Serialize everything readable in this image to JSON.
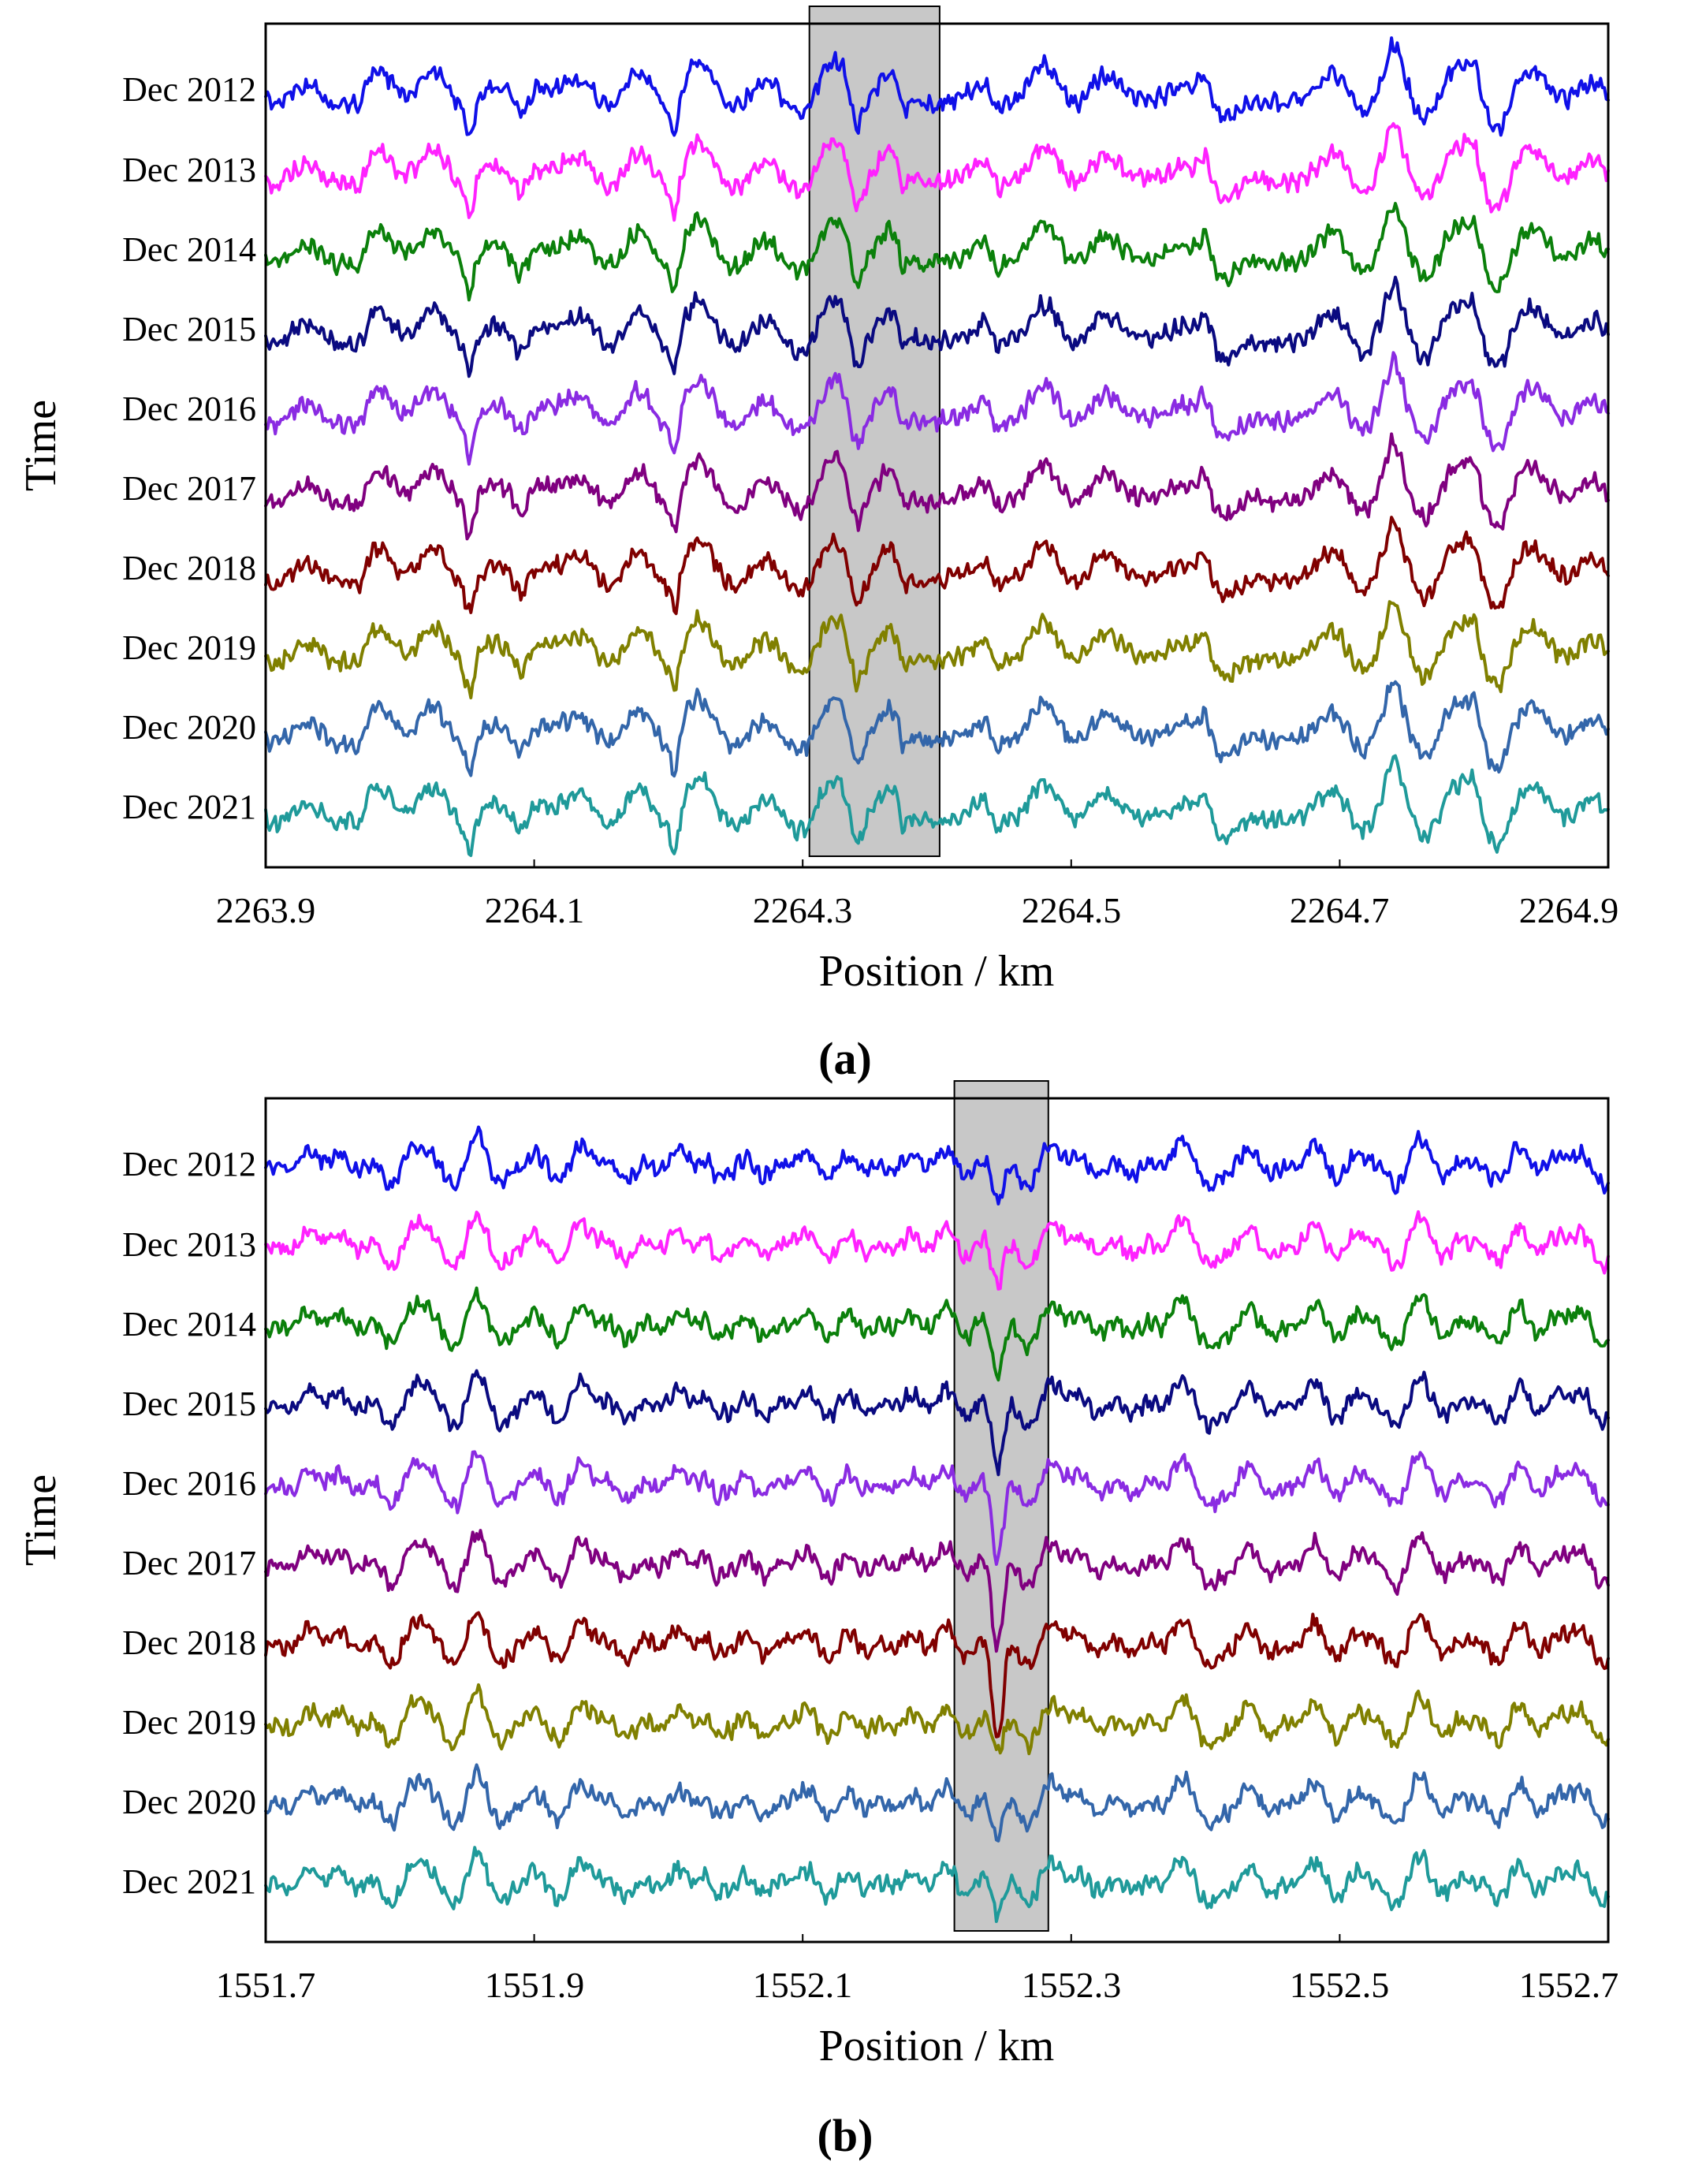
{
  "chart_data": [
    {
      "id": "a",
      "type": "line",
      "panel_label": "(a)",
      "xlabel": "Position / km",
      "ylabel": "Time",
      "xlim": [
        2263.9,
        2264.9
      ],
      "x_ticks": [
        "2263.9",
        "2264.1",
        "2264.3",
        "2264.5",
        "2264.7",
        "2264.9"
      ],
      "highlight_range": [
        2264.305,
        2264.402
      ],
      "y_categories": [
        "Dec 2012",
        "Dec 2013",
        "Dec 2014",
        "Dec 2015",
        "Dec 2016",
        "Dec 2017",
        "Dec 2018",
        "Dec 2019",
        "Dec 2020",
        "Dec 2021"
      ],
      "series": [
        {
          "name": "Dec 2012",
          "color": "#1010e8"
        },
        {
          "name": "Dec 2013",
          "color": "#ff22ff"
        },
        {
          "name": "Dec 2014",
          "color": "#0b800b"
        },
        {
          "name": "Dec 2015",
          "color": "#0a0a80"
        },
        {
          "name": "Dec 2016",
          "color": "#8a2be2"
        },
        {
          "name": "Dec 2017",
          "color": "#800080"
        },
        {
          "name": "Dec 2018",
          "color": "#800000"
        },
        {
          "name": "Dec 2019",
          "color": "#808000"
        },
        {
          "name": "Dec 2020",
          "color": "#3366aa"
        },
        {
          "name": "Dec 2021",
          "color": "#1f9a9a"
        }
      ],
      "features": [
        {
          "x": 2263.97,
          "depth": 0.45,
          "width": 0.006
        },
        {
          "x": 2264.052,
          "depth": 0.8,
          "width": 0.004
        },
        {
          "x": 2264.09,
          "depth": 0.5,
          "width": 0.006
        },
        {
          "x": 2264.205,
          "depth": 0.85,
          "width": 0.004
        },
        {
          "x": 2264.34,
          "depth": 0.9,
          "width": 0.006
        },
        {
          "x": 2264.375,
          "depth": 0.75,
          "width": 0.005
        },
        {
          "x": 2264.445,
          "depth": 0.5,
          "width": 0.006
        },
        {
          "x": 2264.63,
          "depth": 0.7,
          "width": 0.03
        },
        {
          "x": 2264.82,
          "depth": 0.9,
          "width": 0.012
        },
        {
          "x": 2264.6,
          "depth": -0.7,
          "width": 0.006
        },
        {
          "x": 2264.8,
          "depth": -0.85,
          "width": 0.008
        },
        {
          "x": 2264.74,
          "depth": -0.5,
          "width": 0.006
        }
      ]
    },
    {
      "id": "b",
      "type": "line",
      "panel_label": "(b)",
      "xlabel": "Position / km",
      "ylabel": "Time",
      "xlim": [
        1551.7,
        1552.7
      ],
      "x_ticks": [
        "1551.7",
        "1551.9",
        "1552.1",
        "1552.3",
        "1552.5",
        "1552.7"
      ],
      "highlight_range": [
        1552.213,
        1552.283
      ],
      "y_categories": [
        "Dec 2012",
        "Dec 2013",
        "Dec 2014",
        "Dec 2015",
        "Dec 2016",
        "Dec 2017",
        "Dec 2018",
        "Dec 2019",
        "Dec 2020",
        "Dec 2021"
      ],
      "series": [
        {
          "name": "Dec 2012",
          "color": "#1010e8"
        },
        {
          "name": "Dec 2013",
          "color": "#ff22ff"
        },
        {
          "name": "Dec 2014",
          "color": "#0b800b"
        },
        {
          "name": "Dec 2015",
          "color": "#0a0a80"
        },
        {
          "name": "Dec 2016",
          "color": "#8a2be2"
        },
        {
          "name": "Dec 2017",
          "color": "#800080"
        },
        {
          "name": "Dec 2018",
          "color": "#800000"
        },
        {
          "name": "Dec 2019",
          "color": "#808000"
        },
        {
          "name": "Dec 2020",
          "color": "#3366aa"
        },
        {
          "name": "Dec 2021",
          "color": "#1f9a9a"
        }
      ],
      "features": [
        {
          "x": 1552.035,
          "depth": 0.55,
          "width": 0.004
        },
        {
          "x": 1552.245,
          "depth": 0.75,
          "width": 0.006
        },
        {
          "x": 1552.405,
          "depth": 0.35,
          "width": 0.008
        },
        {
          "x": 1552.11,
          "depth": 0.25,
          "width": 0.01
        },
        {
          "x": 1551.905,
          "depth": 0.25,
          "width": 0.006
        },
        {
          "x": 1552.58,
          "depth": 0.25,
          "width": 0.006
        }
      ],
      "deep_growth": {
        "x": 1552.245,
        "by_year": [
          0.45,
          0.6,
          0.9,
          1.2,
          1.5,
          1.8,
          2.1,
          0.2,
          0.35,
          0.35
        ]
      }
    }
  ]
}
